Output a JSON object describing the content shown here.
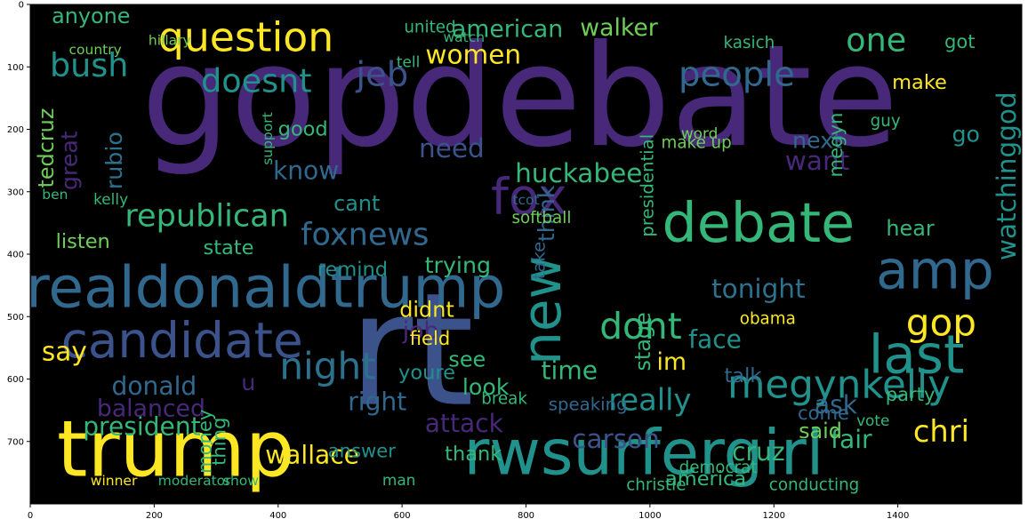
{
  "chart_data": {
    "type": "other",
    "xlim": [
      0,
      1600
    ],
    "ylim": [
      0,
      800
    ],
    "x_ticks": [
      "0",
      "200",
      "400",
      "600",
      "800",
      "1000",
      "1200",
      "1400"
    ],
    "y_ticks": [
      "0",
      "100",
      "200",
      "300",
      "400",
      "500",
      "600",
      "700"
    ],
    "background": "#000000",
    "words": [
      {
        "text": "gopdebate",
        "x": 790,
        "y": 225,
        "size": 225,
        "color": "#482878"
      },
      {
        "text": "rt",
        "x": 615,
        "y": 640,
        "size": 250,
        "color": "#3b528b"
      },
      {
        "text": "trump",
        "x": 235,
        "y": 755,
        "size": 125,
        "color": "#fde725"
      },
      {
        "text": "rwsurfergirl",
        "x": 990,
        "y": 752,
        "size": 100,
        "color": "#21918c"
      },
      {
        "text": "realdonaldtrump",
        "x": 380,
        "y": 485,
        "size": 92,
        "color": "#31688e"
      },
      {
        "text": "candidate",
        "x": 245,
        "y": 565,
        "size": 78,
        "color": "#3b528b"
      },
      {
        "text": "debate",
        "x": 1175,
        "y": 380,
        "size": 88,
        "color": "#35b779"
      },
      {
        "text": "fox",
        "x": 805,
        "y": 335,
        "size": 80,
        "color": "#482878"
      },
      {
        "text": "amp",
        "x": 1460,
        "y": 455,
        "size": 85,
        "color": "#31688e"
      },
      {
        "text": "new",
        "x": 855,
        "y": 490,
        "size": 85,
        "color": "#21918c",
        "rotate": -90
      },
      {
        "text": "last",
        "x": 1430,
        "y": 590,
        "size": 85,
        "color": "#21918c"
      },
      {
        "text": "question",
        "x": 348,
        "y": 75,
        "size": 65,
        "color": "#fde725"
      },
      {
        "text": "megynkelly",
        "x": 1305,
        "y": 630,
        "size": 62,
        "color": "#21918c"
      },
      {
        "text": "night",
        "x": 480,
        "y": 600,
        "size": 60,
        "color": "#2c728e"
      },
      {
        "text": "dont",
        "x": 985,
        "y": 535,
        "size": 58,
        "color": "#35b779"
      },
      {
        "text": "gop",
        "x": 1470,
        "y": 530,
        "size": 60,
        "color": "#fde725"
      },
      {
        "text": "people",
        "x": 1140,
        "y": 130,
        "size": 55,
        "color": "#31688e"
      },
      {
        "text": "bush",
        "x": 95,
        "y": 115,
        "size": 52,
        "color": "#21918c"
      },
      {
        "text": "republican",
        "x": 285,
        "y": 355,
        "size": 50,
        "color": "#35b779"
      },
      {
        "text": "foxnews",
        "x": 540,
        "y": 385,
        "size": 50,
        "color": "#31688e"
      },
      {
        "text": "women",
        "x": 715,
        "y": 95,
        "size": 42,
        "color": "#fde725"
      },
      {
        "text": "american",
        "x": 770,
        "y": 52,
        "size": 38,
        "color": "#35b779"
      },
      {
        "text": "jeb",
        "x": 568,
        "y": 130,
        "size": 55,
        "color": "#3b528b"
      },
      {
        "text": "doesnt",
        "x": 365,
        "y": 140,
        "size": 52,
        "color": "#21918c"
      },
      {
        "text": "one",
        "x": 1365,
        "y": 75,
        "size": 52,
        "color": "#35b779"
      },
      {
        "text": "walker",
        "x": 950,
        "y": 50,
        "size": 38,
        "color": "#6ece58"
      },
      {
        "text": "watchinggod",
        "x": 1590,
        "y": 275,
        "size": 42,
        "color": "#21918c",
        "rotate": -90
      },
      {
        "text": "president",
        "x": 180,
        "y": 690,
        "size": 40,
        "color": "#35b779"
      },
      {
        "text": "wallace",
        "x": 455,
        "y": 735,
        "size": 40,
        "color": "#fde725"
      },
      {
        "text": "huckabee",
        "x": 885,
        "y": 285,
        "size": 42,
        "color": "#35b779"
      },
      {
        "text": "need",
        "x": 680,
        "y": 245,
        "size": 42,
        "color": "#3b528b"
      },
      {
        "text": "know",
        "x": 445,
        "y": 280,
        "size": 40,
        "color": "#31688e"
      },
      {
        "text": "tonight",
        "x": 1175,
        "y": 470,
        "size": 42,
        "color": "#2c728e"
      },
      {
        "text": "want",
        "x": 1270,
        "y": 265,
        "size": 42,
        "color": "#482878"
      },
      {
        "text": "next",
        "x": 1270,
        "y": 230,
        "size": 36,
        "color": "#31688e"
      },
      {
        "text": "carson",
        "x": 945,
        "y": 710,
        "size": 42,
        "color": "#3b528b"
      },
      {
        "text": "cruz",
        "x": 1175,
        "y": 730,
        "size": 40,
        "color": "#35b779"
      },
      {
        "text": "fair",
        "x": 1325,
        "y": 710,
        "size": 40,
        "color": "#35b779"
      },
      {
        "text": "chri",
        "x": 1470,
        "y": 700,
        "size": 48,
        "color": "#fde725"
      },
      {
        "text": "ask",
        "x": 1300,
        "y": 655,
        "size": 40,
        "color": "#31688e"
      },
      {
        "text": "really",
        "x": 1000,
        "y": 650,
        "size": 48,
        "color": "#21918c"
      },
      {
        "text": "face",
        "x": 1105,
        "y": 550,
        "size": 40,
        "color": "#21918c"
      },
      {
        "text": "time",
        "x": 870,
        "y": 600,
        "size": 40,
        "color": "#35b779"
      },
      {
        "text": "im",
        "x": 1035,
        "y": 585,
        "size": 38,
        "color": "#fde725"
      },
      {
        "text": "donald",
        "x": 200,
        "y": 625,
        "size": 40,
        "color": "#31688e"
      },
      {
        "text": "balanced",
        "x": 195,
        "y": 660,
        "size": 38,
        "color": "#482878"
      },
      {
        "text": "say",
        "x": 55,
        "y": 570,
        "size": 42,
        "color": "#fde725"
      },
      {
        "text": "right",
        "x": 560,
        "y": 650,
        "size": 40,
        "color": "#31688e"
      },
      {
        "text": "attack",
        "x": 700,
        "y": 685,
        "size": 40,
        "color": "#482878"
      },
      {
        "text": "see",
        "x": 705,
        "y": 580,
        "size": 34,
        "color": "#35b779"
      },
      {
        "text": "look",
        "x": 735,
        "y": 625,
        "size": 36,
        "color": "#35b779"
      },
      {
        "text": "said",
        "x": 1275,
        "y": 695,
        "size": 34,
        "color": "#6ece58"
      },
      {
        "text": "come",
        "x": 1280,
        "y": 665,
        "size": 30,
        "color": "#31688e"
      },
      {
        "text": "talk",
        "x": 1150,
        "y": 605,
        "size": 32,
        "color": "#31688e"
      },
      {
        "text": "america",
        "x": 1090,
        "y": 770,
        "size": 32,
        "color": "#35b779"
      },
      {
        "text": "thank",
        "x": 715,
        "y": 730,
        "size": 32,
        "color": "#35b779"
      },
      {
        "text": "youre",
        "x": 640,
        "y": 600,
        "size": 32,
        "color": "#21918c"
      },
      {
        "text": "didnt",
        "x": 640,
        "y": 500,
        "size": 34,
        "color": "#fde725"
      },
      {
        "text": "job",
        "x": 630,
        "y": 535,
        "size": 38,
        "color": "#482878"
      },
      {
        "text": "trying",
        "x": 690,
        "y": 430,
        "size": 36,
        "color": "#35b779"
      },
      {
        "text": "think",
        "x": 845,
        "y": 335,
        "size": 36,
        "color": "#31688e",
        "rotate": -90
      },
      {
        "text": "hear",
        "x": 1420,
        "y": 370,
        "size": 34,
        "color": "#35b779"
      },
      {
        "text": "make",
        "x": 1435,
        "y": 135,
        "size": 32,
        "color": "#fde725"
      },
      {
        "text": "go",
        "x": 1510,
        "y": 220,
        "size": 36,
        "color": "#21918c"
      },
      {
        "text": "good",
        "x": 440,
        "y": 210,
        "size": 32,
        "color": "#35b779"
      },
      {
        "text": "listen",
        "x": 85,
        "y": 390,
        "size": 32,
        "color": "#6ece58"
      },
      {
        "text": "state",
        "x": 320,
        "y": 400,
        "size": 32,
        "color": "#35b779"
      },
      {
        "text": "great",
        "x": 75,
        "y": 250,
        "size": 36,
        "color": "#482878",
        "rotate": -90
      },
      {
        "text": "tedcruz",
        "x": 37,
        "y": 230,
        "size": 34,
        "color": "#6ece58",
        "rotate": -90
      },
      {
        "text": "rubio",
        "x": 148,
        "y": 250,
        "size": 36,
        "color": "#2c728e",
        "rotate": -90
      },
      {
        "text": "anyone",
        "x": 98,
        "y": 30,
        "size": 34,
        "color": "#35b779"
      },
      {
        "text": "cant",
        "x": 527,
        "y": 330,
        "size": 34,
        "color": "#21918c"
      },
      {
        "text": "remind",
        "x": 520,
        "y": 435,
        "size": 32,
        "color": "#21918c"
      },
      {
        "text": "field",
        "x": 645,
        "y": 545,
        "size": 30,
        "color": "#fde725"
      },
      {
        "text": "money",
        "x": 292,
        "y": 700,
        "size": 30,
        "color": "#35b779",
        "rotate": -90
      },
      {
        "text": "thing",
        "x": 315,
        "y": 700,
        "size": 30,
        "color": "#35b779",
        "rotate": -90
      },
      {
        "text": "kelly",
        "x": 130,
        "y": 320,
        "size": 24,
        "color": "#35b779"
      },
      {
        "text": "ben",
        "x": 40,
        "y": 312,
        "size": 22,
        "color": "#35b779"
      },
      {
        "text": "stage",
        "x": 1000,
        "y": 540,
        "size": 34,
        "color": "#35b779",
        "rotate": -90
      },
      {
        "text": "u",
        "x": 352,
        "y": 618,
        "size": 36,
        "color": "#482878"
      },
      {
        "text": "conducting",
        "x": 1265,
        "y": 778,
        "size": 26,
        "color": "#35b779"
      },
      {
        "text": "moderator",
        "x": 265,
        "y": 770,
        "size": 22,
        "color": "#35b779"
      },
      {
        "text": "show",
        "x": 340,
        "y": 770,
        "size": 22,
        "color": "#35b779"
      },
      {
        "text": "winner",
        "x": 135,
        "y": 770,
        "size": 22,
        "color": "#fde725"
      },
      {
        "text": "obama",
        "x": 1190,
        "y": 512,
        "size": 26,
        "color": "#fde725"
      },
      {
        "text": "party",
        "x": 1420,
        "y": 635,
        "size": 30,
        "color": "#35b779"
      },
      {
        "text": "vote",
        "x": 1360,
        "y": 675,
        "size": 24,
        "color": "#35b779"
      },
      {
        "text": "christie",
        "x": 1010,
        "y": 778,
        "size": 26,
        "color": "#35b779"
      },
      {
        "text": "softball",
        "x": 825,
        "y": 350,
        "size": 26,
        "color": "#6ece58"
      },
      {
        "text": "tcot",
        "x": 800,
        "y": 320,
        "size": 22,
        "color": "#31688e"
      },
      {
        "text": "take",
        "x": 830,
        "y": 410,
        "size": 28,
        "color": "#31688e",
        "rotate": -90
      },
      {
        "text": "speaking",
        "x": 900,
        "y": 650,
        "size": 28,
        "color": "#31688e"
      },
      {
        "text": "answer",
        "x": 535,
        "y": 725,
        "size": 30,
        "color": "#21918c"
      },
      {
        "text": "break",
        "x": 765,
        "y": 640,
        "size": 26,
        "color": "#35b779"
      },
      {
        "text": "man",
        "x": 595,
        "y": 770,
        "size": 24,
        "color": "#35b779"
      },
      {
        "text": "democrat",
        "x": 1110,
        "y": 750,
        "size": 26,
        "color": "#35b779"
      },
      {
        "text": "united",
        "x": 645,
        "y": 45,
        "size": 26,
        "color": "#35b779"
      },
      {
        "text": "hillary",
        "x": 225,
        "y": 65,
        "size": 22,
        "color": "#6ece58"
      },
      {
        "text": "country",
        "x": 105,
        "y": 80,
        "size": 22,
        "color": "#6ece58"
      },
      {
        "text": "got",
        "x": 1500,
        "y": 70,
        "size": 30,
        "color": "#35b779"
      },
      {
        "text": "kasich",
        "x": 1160,
        "y": 70,
        "size": 26,
        "color": "#35b779"
      },
      {
        "text": "guy",
        "x": 1380,
        "y": 195,
        "size": 26,
        "color": "#35b779"
      },
      {
        "text": "megyn",
        "x": 1310,
        "y": 225,
        "size": 30,
        "color": "#35b779",
        "rotate": -90
      },
      {
        "text": "make up",
        "x": 1075,
        "y": 230,
        "size": 26,
        "color": "#6ece58"
      },
      {
        "text": "word",
        "x": 1080,
        "y": 215,
        "size": 24,
        "color": "#6ece58"
      },
      {
        "text": "presidential",
        "x": 1005,
        "y": 290,
        "size": 28,
        "color": "#35b779",
        "rotate": -90
      },
      {
        "text": "support",
        "x": 390,
        "y": 215,
        "size": 22,
        "color": "#35b779",
        "rotate": -90
      },
      {
        "text": "tell",
        "x": 610,
        "y": 100,
        "size": 24,
        "color": "#35b779"
      },
      {
        "text": "watch",
        "x": 700,
        "y": 60,
        "size": 22,
        "color": "#35b779"
      }
    ]
  }
}
